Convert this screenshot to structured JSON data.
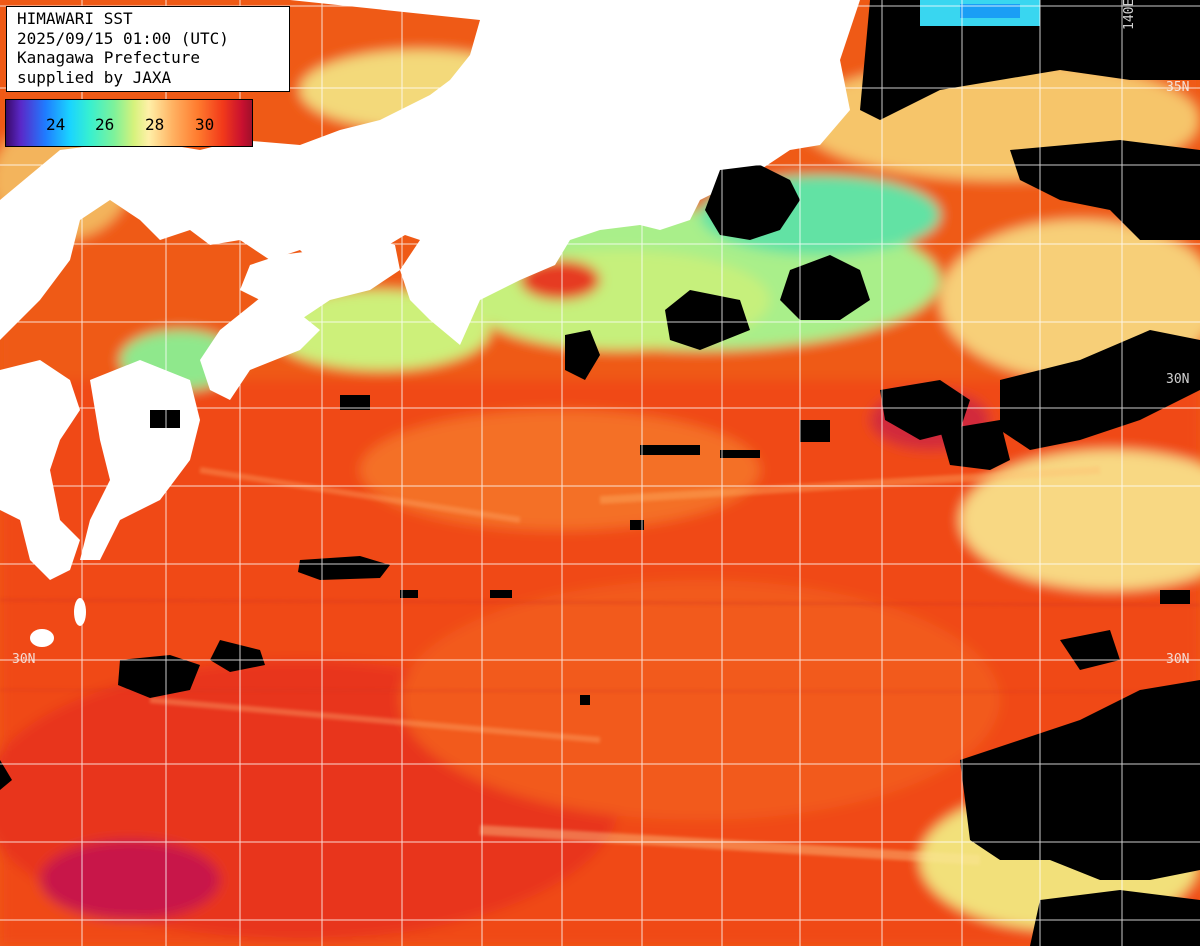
{
  "title": "HIMAWARI SST",
  "datetime": "2025/09/15 01:00 (UTC)",
  "region": "Kanagawa Prefecture",
  "credit": "supplied by JAXA",
  "legend": {
    "ticks": [
      "24",
      "26",
      "28",
      "30"
    ],
    "colors": {
      "cold": "#5a28c8",
      "cool": "#1ad4ff",
      "mild": "#7ef29a",
      "warm": "#ffb060",
      "hot": "#f23a1a",
      "hottest": "#a0102a"
    }
  },
  "map": {
    "land_color": "#ffffff",
    "cloud_color": "#000000",
    "grid_color": "#ffffff",
    "lat_labels": [
      "35N",
      "30N",
      "30N",
      "30N"
    ],
    "lon_labels": [
      "140E"
    ]
  }
}
